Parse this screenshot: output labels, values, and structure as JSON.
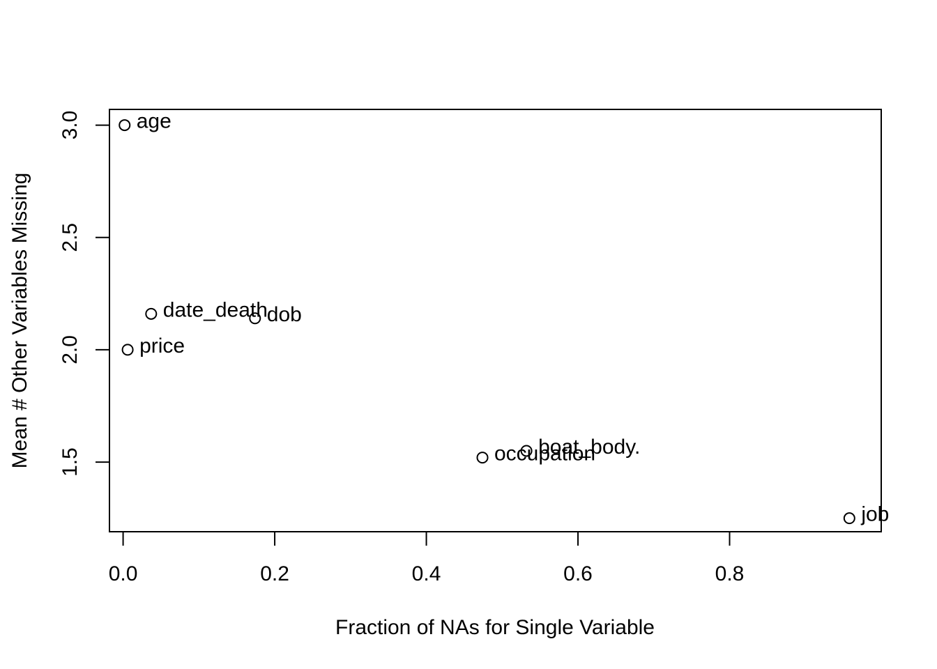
{
  "chart_data": {
    "type": "scatter",
    "xlabel": "Fraction of NAs for Single Variable",
    "ylabel": "Mean # Other Variables Missing",
    "xlim": [
      -0.018,
      1.0
    ],
    "ylim": [
      1.19,
      3.07
    ],
    "x_ticks": [
      0.0,
      0.2,
      0.4,
      0.6,
      0.8
    ],
    "x_tick_labels": [
      "0.0",
      "0.2",
      "0.4",
      "0.6",
      "0.8"
    ],
    "y_ticks": [
      1.5,
      2.0,
      2.5,
      3.0
    ],
    "y_tick_labels": [
      "1.5",
      "2.0",
      "2.5",
      "3.0"
    ],
    "grid": false,
    "marker": "open-circle",
    "points": [
      {
        "label": "age",
        "x": 0.002,
        "y": 3.0
      },
      {
        "label": "date_death",
        "x": 0.037,
        "y": 2.16
      },
      {
        "label": "dob",
        "x": 0.174,
        "y": 2.14
      },
      {
        "label": "price",
        "x": 0.006,
        "y": 2.0
      },
      {
        "label": "boat_body.",
        "x": 0.532,
        "y": 1.55
      },
      {
        "label": "occupation",
        "x": 0.474,
        "y": 1.52
      },
      {
        "label": "job",
        "x": 0.958,
        "y": 1.25
      }
    ]
  }
}
